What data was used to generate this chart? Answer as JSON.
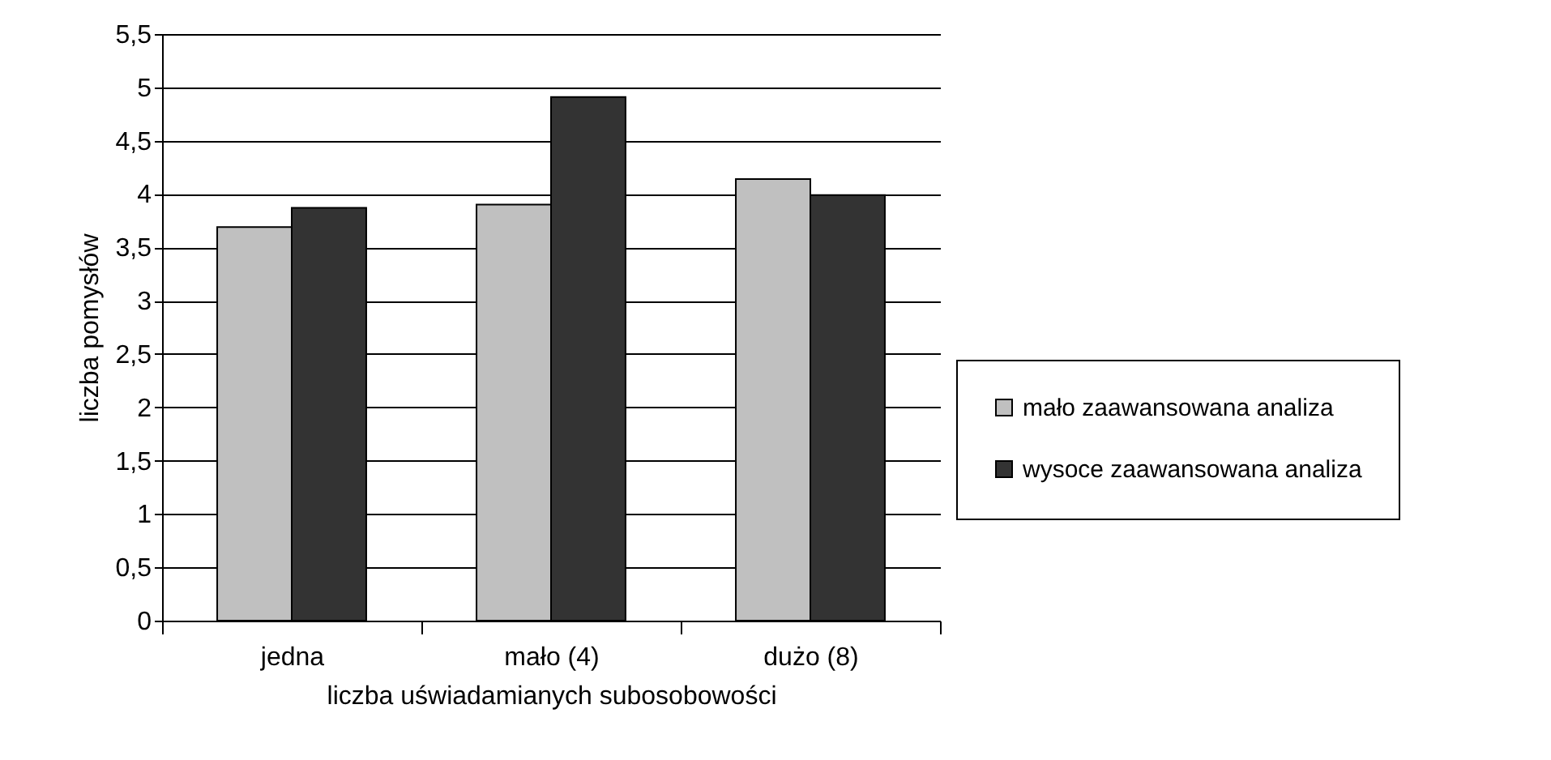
{
  "chart_data": {
    "type": "bar",
    "xlabel": "liczba uświadamianych subosobowości",
    "ylabel": "liczba pomysłów",
    "categories": [
      "jedna",
      "mało (4)",
      "dużo (8)"
    ],
    "series": [
      {
        "name": "mało zaawansowana analiza",
        "color": "#c0c0c0",
        "values": [
          3.69,
          3.9,
          4.14
        ]
      },
      {
        "name": "wysoce zaawansowana analiza",
        "color": "#333333",
        "values": [
          3.87,
          4.91,
          3.99
        ]
      }
    ],
    "ylim": [
      0,
      5.5
    ],
    "yticks": [
      0,
      {
        "value": 0.5,
        "label": "0,5"
      },
      1,
      {
        "value": 1.5,
        "label": "1,5"
      },
      2,
      {
        "value": 2.5,
        "label": "2,5"
      },
      3,
      {
        "value": 3.5,
        "label": "3,5"
      },
      4,
      {
        "value": 4.5,
        "label": "4,5"
      },
      5,
      {
        "value": 5.5,
        "label": "5,5"
      }
    ],
    "grid": "y",
    "legend": "right"
  }
}
